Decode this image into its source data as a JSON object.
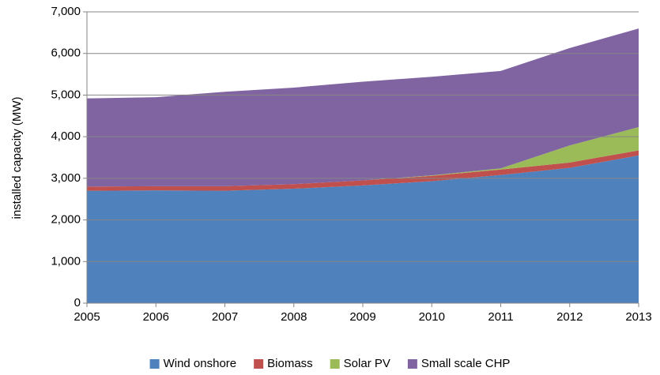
{
  "chart_data": {
    "type": "stacked_area",
    "y_label": "installed capacity (MW)",
    "x": [
      2005,
      2006,
      2007,
      2008,
      2009,
      2010,
      2011,
      2012,
      2013
    ],
    "xlim": [
      2005,
      2013
    ],
    "xticks": [
      2005,
      2006,
      2007,
      2008,
      2009,
      2010,
      2011,
      2012,
      2013
    ],
    "ylim": [
      0,
      7000
    ],
    "yticks": [
      0,
      {
        "value": 1000,
        "label": "1,000"
      },
      {
        "value": 2000,
        "label": "2,000"
      },
      {
        "value": 3000,
        "label": "3,000"
      },
      {
        "value": 4000,
        "label": "4,000"
      },
      {
        "value": 5000,
        "label": "5,000"
      },
      {
        "value": 6000,
        "label": "6,000"
      },
      {
        "value": 7000,
        "label": "7,000"
      }
    ],
    "grid": true,
    "legend": "bottom",
    "series": [
      {
        "name": "Wind onshore",
        "color": "#4f81bd",
        "values": [
          2700,
          2710,
          2700,
          2750,
          2830,
          2930,
          3080,
          3250,
          3550
        ]
      },
      {
        "name": "Biomass",
        "color": "#c0504d",
        "values": [
          100,
          100,
          110,
          110,
          120,
          130,
          130,
          130,
          120
        ]
      },
      {
        "name": "Solar PV",
        "color": "#9bbb59",
        "values": [
          0,
          0,
          0,
          0,
          0,
          10,
          30,
          410,
          560
        ]
      },
      {
        "name": "Small scale CHP",
        "color": "#8064a2",
        "values": [
          2120,
          2140,
          2270,
          2320,
          2370,
          2370,
          2340,
          2340,
          2370
        ]
      }
    ]
  }
}
